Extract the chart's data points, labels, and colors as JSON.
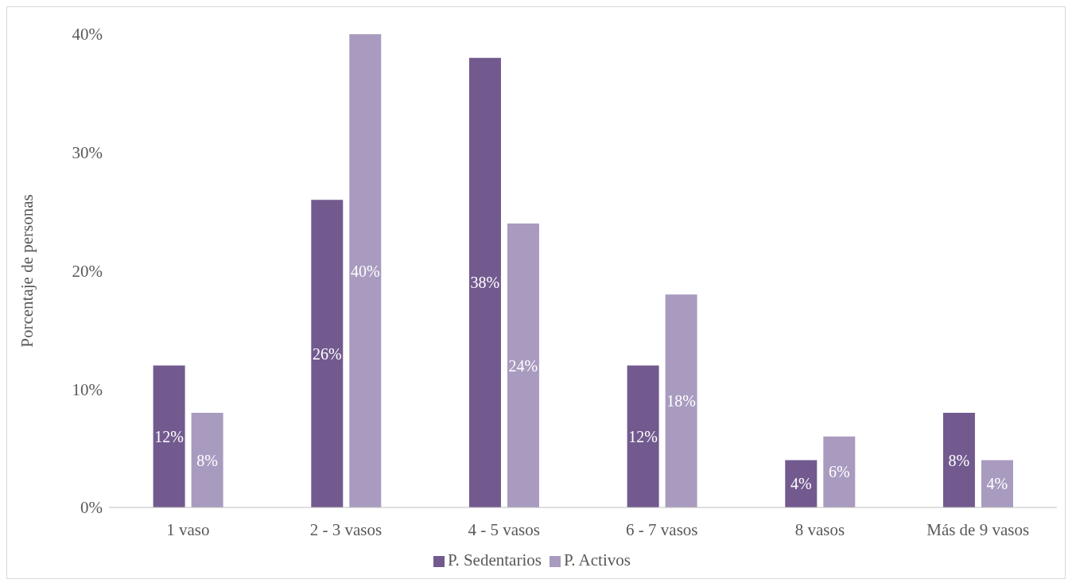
{
  "chart_data": {
    "type": "bar",
    "ylabel": "Porcentaje de personas",
    "categories": [
      "1 vaso",
      "2 - 3 vasos",
      "4 - 5 vasos",
      "6 - 7 vasos",
      "8 vasos",
      "Más de 9 vasos"
    ],
    "series": [
      {
        "name": "P. Sedentarios",
        "color": "#725a8f",
        "values": [
          12,
          26,
          38,
          12,
          4,
          8
        ],
        "value_labels": [
          "12%",
          "26%",
          "38%",
          "12%",
          "4%",
          "8%"
        ]
      },
      {
        "name": "P. Activos",
        "color": "#a99bbf",
        "values": [
          8,
          40,
          24,
          18,
          6,
          4
        ],
        "value_labels": [
          "8%",
          "40%",
          "24%",
          "18%",
          "6%",
          "4%"
        ]
      }
    ],
    "ylim": [
      0,
      40
    ],
    "yticks": [
      {
        "value": 0,
        "label": "0%"
      },
      {
        "value": 10,
        "label": "10%"
      },
      {
        "value": 20,
        "label": "20%"
      },
      {
        "value": 30,
        "label": "30%"
      },
      {
        "value": 40,
        "label": "40%"
      }
    ],
    "grid": false,
    "legend": "bottom"
  }
}
